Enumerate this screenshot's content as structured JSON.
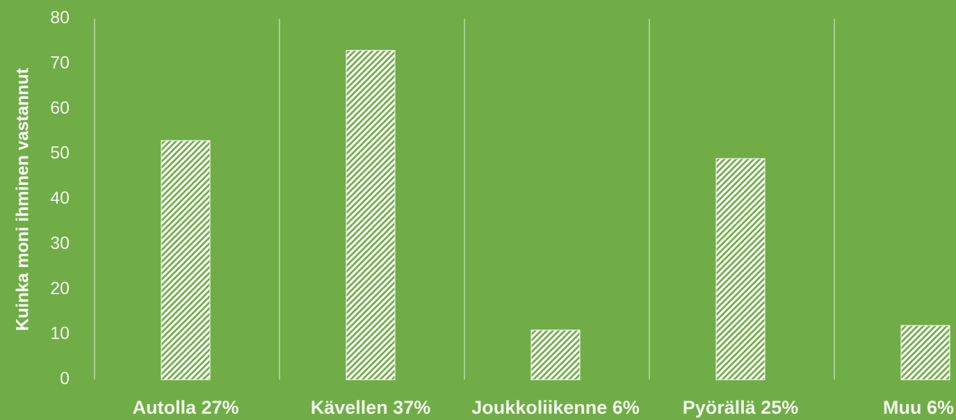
{
  "chart_data": {
    "type": "bar",
    "y_label": "Kuinka moni ihminen vastannut",
    "categories": [
      "Autolla 27%",
      "Kävellen 37%",
      "Joukkoliikenne 6%",
      "Pyörällä 25%",
      "Muu 6%"
    ],
    "values": [
      53,
      73,
      11,
      49,
      12
    ],
    "color": "#ffffff",
    "ylim": [
      0,
      80
    ],
    "yticks": [
      0,
      10,
      20,
      30,
      40,
      50,
      60,
      70,
      80
    ],
    "grid": true
  }
}
